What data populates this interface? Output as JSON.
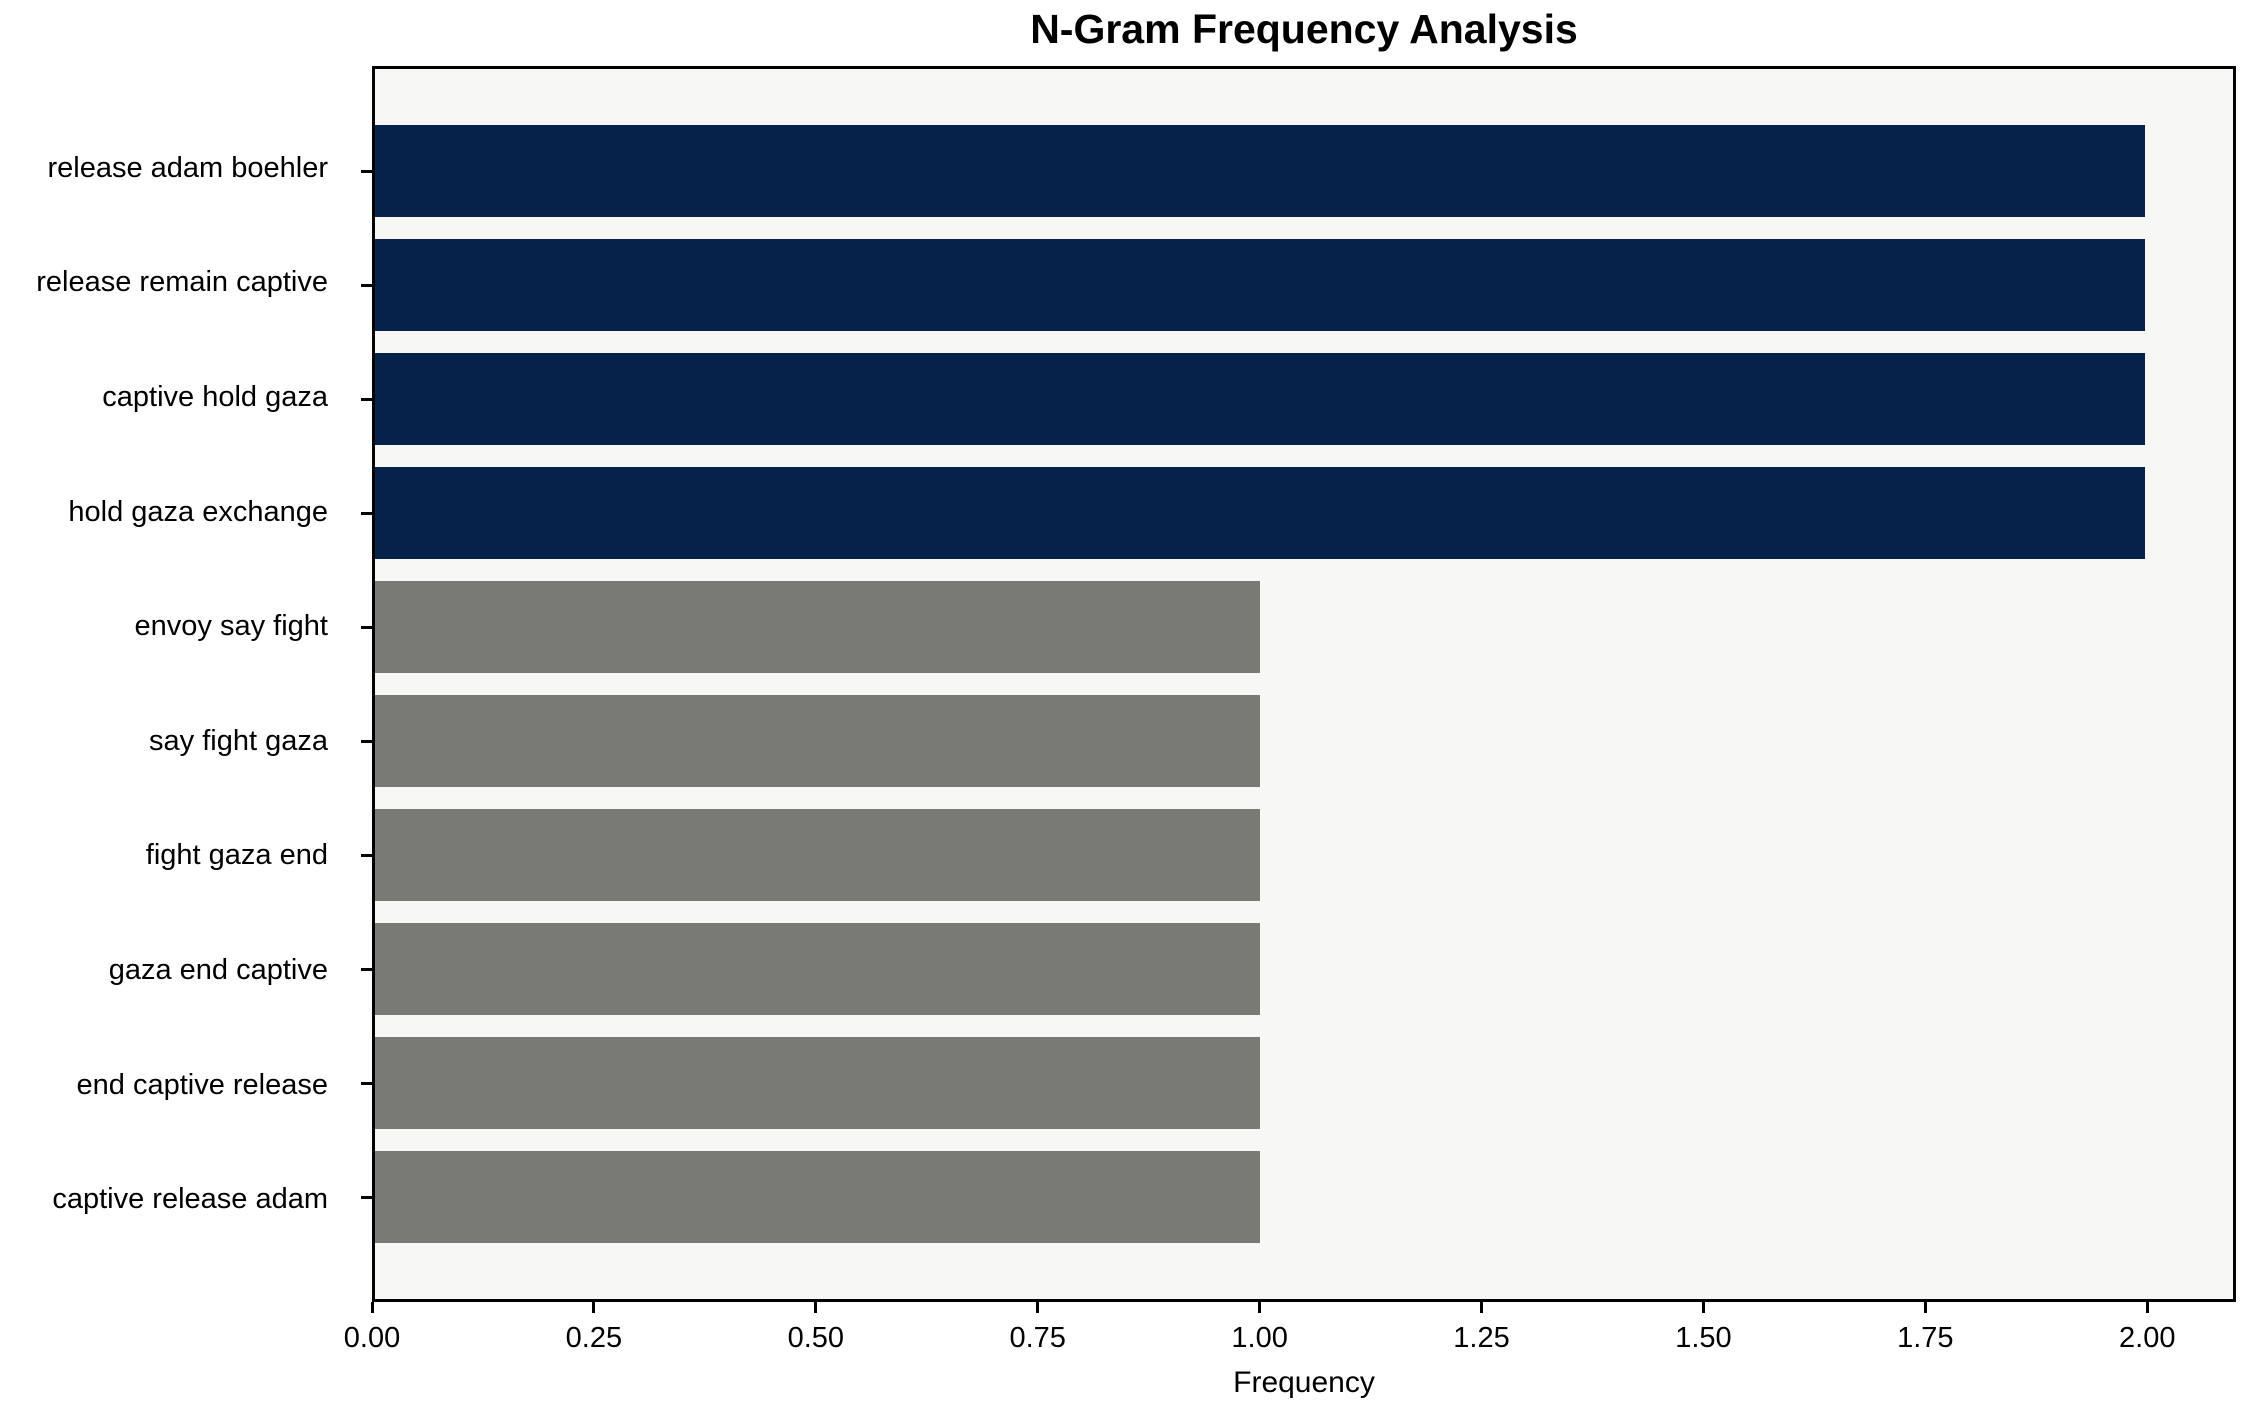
{
  "chart_data": {
    "type": "bar",
    "orientation": "horizontal",
    "title": "N-Gram Frequency Analysis",
    "xlabel": "Frequency",
    "ylabel": "",
    "categories": [
      "release adam boehler",
      "release remain captive",
      "captive hold gaza",
      "hold gaza exchange",
      "envoy say fight",
      "say fight gaza",
      "fight gaza end",
      "gaza end captive",
      "end captive release",
      "captive release adam"
    ],
    "values": [
      2,
      2,
      2,
      2,
      1,
      1,
      1,
      1,
      1,
      1
    ],
    "bar_colors": [
      "#07224a",
      "#07224a",
      "#07224a",
      "#07224a",
      "#7a7a75",
      "#7a7a75",
      "#7a7a75",
      "#7a7a75",
      "#7a7a75",
      "#7a7a75"
    ],
    "xlim": [
      0,
      2.1
    ],
    "xticks": [
      0,
      0.25,
      0.5,
      0.75,
      1.0,
      1.25,
      1.5,
      1.75,
      2.0
    ],
    "xtick_labels": [
      "0.00",
      "0.25",
      "0.50",
      "0.75",
      "1.00",
      "1.25",
      "1.50",
      "1.75",
      "2.00"
    ],
    "grid": false,
    "legend_position": "none",
    "colors": {
      "plot_background": "#f7f7f6",
      "figure_background": "#ffffff",
      "spine": "#000000",
      "text": "#000000",
      "high_frequency_bar": "#07224a",
      "low_frequency_bar": "#7a7a75"
    }
  }
}
